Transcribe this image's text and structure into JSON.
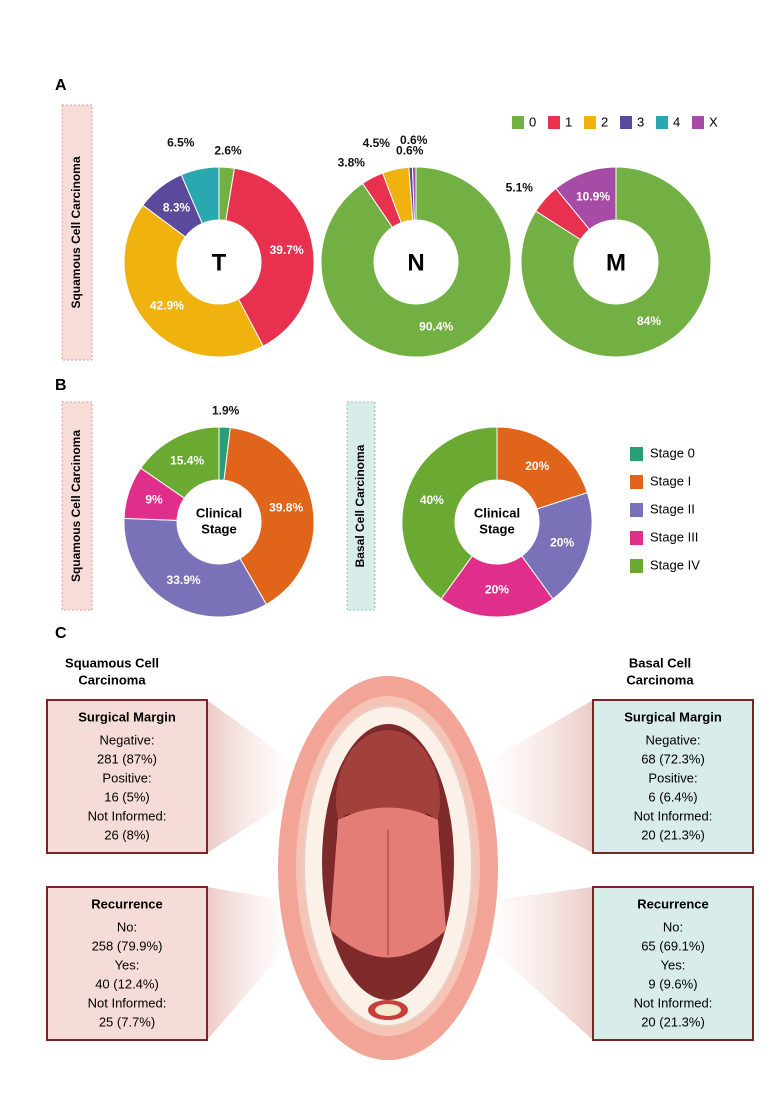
{
  "panel_labels": [
    "A",
    "B",
    "C"
  ],
  "side_labels": [
    "Squamous Cell Carcinoma",
    "Squamous Cell Carcinoma",
    "Basal Cell Carcinoma"
  ],
  "tnm_legend": [
    {
      "name": "0",
      "color": "#72b043"
    },
    {
      "name": "1",
      "color": "#e8304f"
    },
    {
      "name": "2",
      "color": "#f0b20f"
    },
    {
      "name": "3",
      "color": "#5b4a9c"
    },
    {
      "name": "4",
      "color": "#2aa8b0"
    },
    {
      "name": "X",
      "color": "#a64ca6"
    }
  ],
  "stage_legend": [
    {
      "name": "Stage 0",
      "color": "#2a9d75"
    },
    {
      "name": "Stage I",
      "color": "#e0641a"
    },
    {
      "name": "Stage II",
      "color": "#7a72b8"
    },
    {
      "name": "Stage III",
      "color": "#e02f8a"
    },
    {
      "name": "Stage IV",
      "color": "#6aaa32"
    }
  ],
  "chart_data": [
    {
      "type": "donut",
      "center_label": [
        "T"
      ],
      "values": [
        2.6,
        39.7,
        42.9,
        8.3,
        6.5
      ],
      "value_labels": [
        "2.6%",
        "39.7%",
        "42.9%",
        "8.3%",
        "6.5%"
      ],
      "colors": [
        "#72b043",
        "#e8304f",
        "#f0b20f",
        "#5b4a9c",
        "#2aa8b0"
      ]
    },
    {
      "type": "donut",
      "center_label": [
        "N"
      ],
      "values": [
        90.4,
        3.8,
        4.5,
        0.6,
        0.6
      ],
      "value_labels": [
        "90.4%",
        "3.8%",
        "4.5%",
        "0.6%",
        "0.6%"
      ],
      "colors": [
        "#72b043",
        "#e8304f",
        "#f0b20f",
        "#5b4a9c",
        "#a64ca6"
      ]
    },
    {
      "type": "donut",
      "center_label": [
        "M"
      ],
      "values": [
        84,
        5.1,
        10.9
      ],
      "value_labels": [
        "84%",
        "5.1%",
        "10.9%"
      ],
      "colors": [
        "#72b043",
        "#e8304f",
        "#a64ca6"
      ]
    },
    {
      "type": "donut",
      "center_label": [
        "Clinical",
        "Stage"
      ],
      "values": [
        1.9,
        39.8,
        33.9,
        9,
        15.4
      ],
      "value_labels": [
        "1.9%",
        "39.8%",
        "33.9%",
        "9%",
        "15.4%"
      ],
      "colors": [
        "#2a9d75",
        "#e0641a",
        "#7a72b8",
        "#e02f8a",
        "#6aaa32"
      ]
    },
    {
      "type": "donut",
      "center_label": [
        "Clinical",
        "Stage"
      ],
      "values": [
        20,
        20,
        20,
        40
      ],
      "value_labels": [
        "20%",
        "20%",
        "20%",
        "40%"
      ],
      "colors": [
        "#e0641a",
        "#7a72b8",
        "#e02f8a",
        "#6aaa32"
      ]
    }
  ],
  "panel_c": [
    {
      "title": [
        "Squamous Cell",
        "Carcinoma"
      ],
      "boxes": [
        {
          "title": "Surgical Margin",
          "lines": [
            "Negative:",
            "281 (87%)",
            "Positive:",
            "16 (5%)",
            "Not Informed:",
            "26 (8%)"
          ]
        },
        {
          "title": "Recurrence",
          "lines": [
            "No:",
            "258 (79.9%)",
            "Yes:",
            "40 (12.4%)",
            "Not Informed:",
            "25 (7.7%)"
          ]
        }
      ]
    },
    {
      "title": [
        "Basal Cell",
        "Carcinoma"
      ],
      "boxes": [
        {
          "title": "Surgical Margin",
          "lines": [
            "Negative:",
            "68 (72.3%)",
            "Positive:",
            "6 (6.4%)",
            "Not Informed:",
            "20 (21.3%)"
          ]
        },
        {
          "title": "Recurrence",
          "lines": [
            "No:",
            "65 (69.1%)",
            "Yes:",
            "9 (9.6%)",
            "Not Informed:",
            "20 (21.3%)"
          ]
        }
      ]
    }
  ]
}
